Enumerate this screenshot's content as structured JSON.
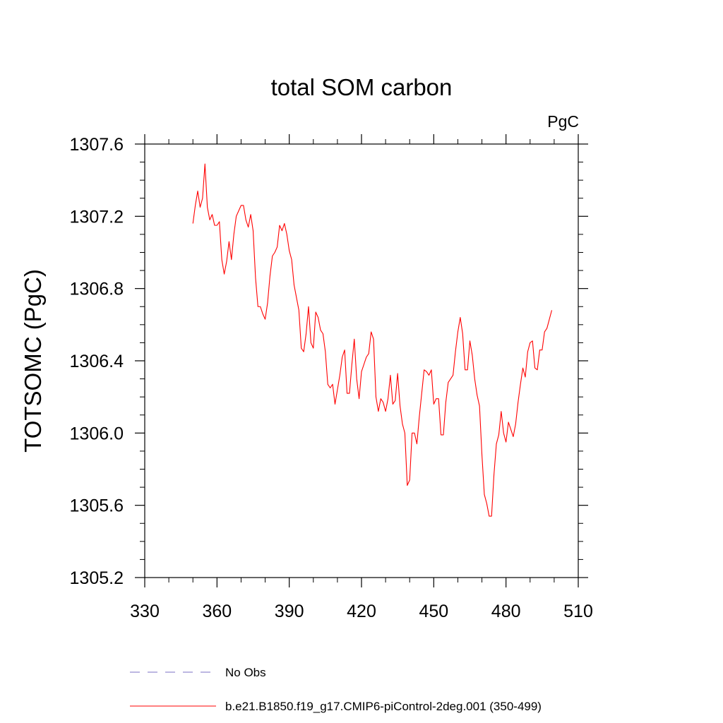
{
  "chart_data": {
    "type": "line",
    "title": "total SOM carbon",
    "units": "PgC",
    "ylabel": "TOTSOMC  (PgC)",
    "xlabel": "",
    "xlim": [
      330,
      510
    ],
    "ylim": [
      1305.2,
      1307.6
    ],
    "xticks": [
      330,
      360,
      390,
      420,
      450,
      480,
      510
    ],
    "xtick_labels": [
      "330",
      "360",
      "390",
      "420",
      "450",
      "480",
      "510"
    ],
    "yticks": [
      1305.2,
      1305.6,
      1306.0,
      1306.4,
      1306.8,
      1307.2,
      1307.6
    ],
    "ytick_labels": [
      "1305.2",
      "1305.6",
      "1306.0",
      "1306.4",
      "1306.8",
      "1307.2",
      "1307.6"
    ],
    "grid": false,
    "legend": [
      {
        "label": "No Obs",
        "style": "dashed",
        "color": "#7b6fc4"
      },
      {
        "label": "b.e21.B1850.f19_g17.CMIP6-piControl-2deg.001 (350-499)",
        "style": "solid",
        "color": "#ff0000"
      }
    ],
    "series": [
      {
        "name": "b.e21.B1850.f19_g17.CMIP6-piControl-2deg.001 (350-499)",
        "color": "#ff0000",
        "x": [
          350,
          351,
          352,
          353,
          354,
          355,
          356,
          357,
          358,
          359,
          360,
          361,
          362,
          363,
          364,
          365,
          366,
          367,
          368,
          369,
          370,
          371,
          372,
          373,
          374,
          375,
          376,
          377,
          378,
          379,
          380,
          381,
          382,
          383,
          384,
          385,
          386,
          387,
          388,
          389,
          390,
          391,
          392,
          393,
          394,
          395,
          396,
          397,
          398,
          399,
          400,
          401,
          402,
          403,
          404,
          405,
          406,
          407,
          408,
          409,
          410,
          411,
          412,
          413,
          414,
          415,
          416,
          417,
          418,
          419,
          420,
          421,
          422,
          423,
          424,
          425,
          426,
          427,
          428,
          429,
          430,
          431,
          432,
          433,
          434,
          435,
          436,
          437,
          438,
          439,
          440,
          441,
          442,
          443,
          444,
          445,
          446,
          447,
          448,
          449,
          450,
          451,
          452,
          453,
          454,
          455,
          456,
          457,
          458,
          459,
          460,
          461,
          462,
          463,
          464,
          465,
          466,
          467,
          468,
          469,
          470,
          471,
          472,
          473,
          474,
          475,
          476,
          477,
          478,
          479,
          480,
          481,
          482,
          483,
          484,
          485,
          486,
          487,
          488,
          489,
          490,
          491,
          492,
          493,
          494,
          495,
          496,
          497,
          498,
          499
        ],
        "y": [
          1307.16,
          1307.26,
          1307.34,
          1307.25,
          1307.3,
          1307.49,
          1307.25,
          1307.18,
          1307.21,
          1307.15,
          1307.15,
          1307.17,
          1306.96,
          1306.88,
          1306.95,
          1307.06,
          1306.96,
          1307.1,
          1307.2,
          1307.23,
          1307.26,
          1307.26,
          1307.18,
          1307.14,
          1307.21,
          1307.12,
          1306.86,
          1306.7,
          1306.7,
          1306.66,
          1306.63,
          1306.72,
          1306.87,
          1306.98,
          1307.0,
          1307.03,
          1307.15,
          1307.12,
          1307.16,
          1307.1,
          1307.01,
          1306.96,
          1306.82,
          1306.75,
          1306.68,
          1306.47,
          1306.45,
          1306.55,
          1306.7,
          1306.5,
          1306.47,
          1306.67,
          1306.64,
          1306.57,
          1306.55,
          1306.45,
          1306.27,
          1306.25,
          1306.27,
          1306.16,
          1306.24,
          1306.32,
          1306.42,
          1306.46,
          1306.22,
          1306.22,
          1306.38,
          1306.52,
          1306.3,
          1306.19,
          1306.34,
          1306.38,
          1306.42,
          1306.44,
          1306.56,
          1306.52,
          1306.2,
          1306.12,
          1306.19,
          1306.17,
          1306.12,
          1306.19,
          1306.32,
          1306.16,
          1306.18,
          1306.33,
          1306.15,
          1306.05,
          1306.0,
          1305.71,
          1305.74,
          1306.0,
          1306.0,
          1305.94,
          1306.09,
          1306.22,
          1306.35,
          1306.34,
          1306.32,
          1306.35,
          1306.16,
          1306.19,
          1306.19,
          1305.99,
          1305.99,
          1306.17,
          1306.28,
          1306.3,
          1306.32,
          1306.45,
          1306.56,
          1306.64,
          1306.55,
          1306.35,
          1306.35,
          1306.51,
          1306.43,
          1306.3,
          1306.21,
          1306.15,
          1305.88,
          1305.66,
          1305.61,
          1305.54,
          1305.54,
          1305.77,
          1305.94,
          1305.99,
          1306.12,
          1306.0,
          1305.95,
          1306.06,
          1306.02,
          1305.98,
          1306.05,
          1306.17,
          1306.27,
          1306.36,
          1306.31,
          1306.45,
          1306.5,
          1306.51,
          1306.36,
          1306.35,
          1306.46,
          1306.46,
          1306.56,
          1306.58,
          1306.63,
          1306.68
        ]
      }
    ]
  }
}
